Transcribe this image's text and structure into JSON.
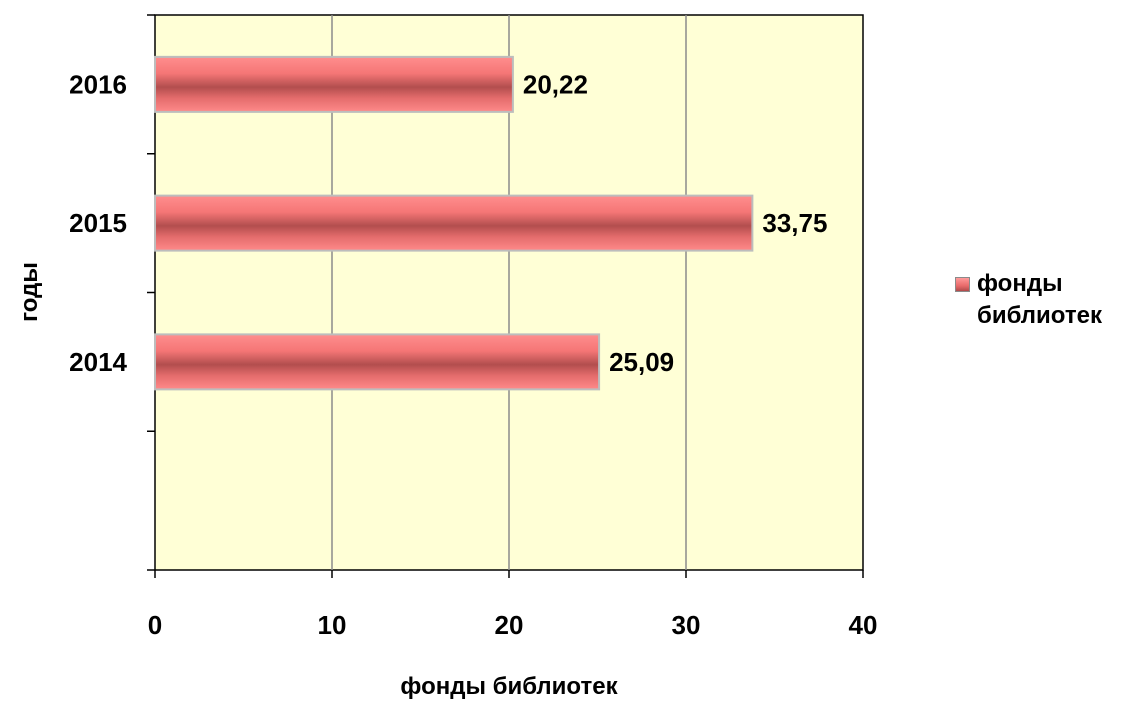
{
  "chart_data": {
    "type": "bar",
    "orientation": "horizontal",
    "categories": [
      "2014",
      "2015",
      "2016"
    ],
    "series": [
      {
        "name": "фонды библиотек",
        "values": [
          25.09,
          33.75,
          20.22
        ],
        "labels": [
          "25,09",
          "33,75",
          "20,22"
        ],
        "color": "#f07878"
      }
    ],
    "xlabel": "фонды библиотек",
    "ylabel": "годы",
    "xlim": [
      0,
      40
    ],
    "x_ticks": [
      0,
      10,
      20,
      30,
      40
    ],
    "x_tick_labels": [
      "0",
      "10",
      "20",
      "30",
      "40"
    ],
    "grid": true,
    "plot_background": "#ffffd6",
    "legend_position": "right"
  }
}
